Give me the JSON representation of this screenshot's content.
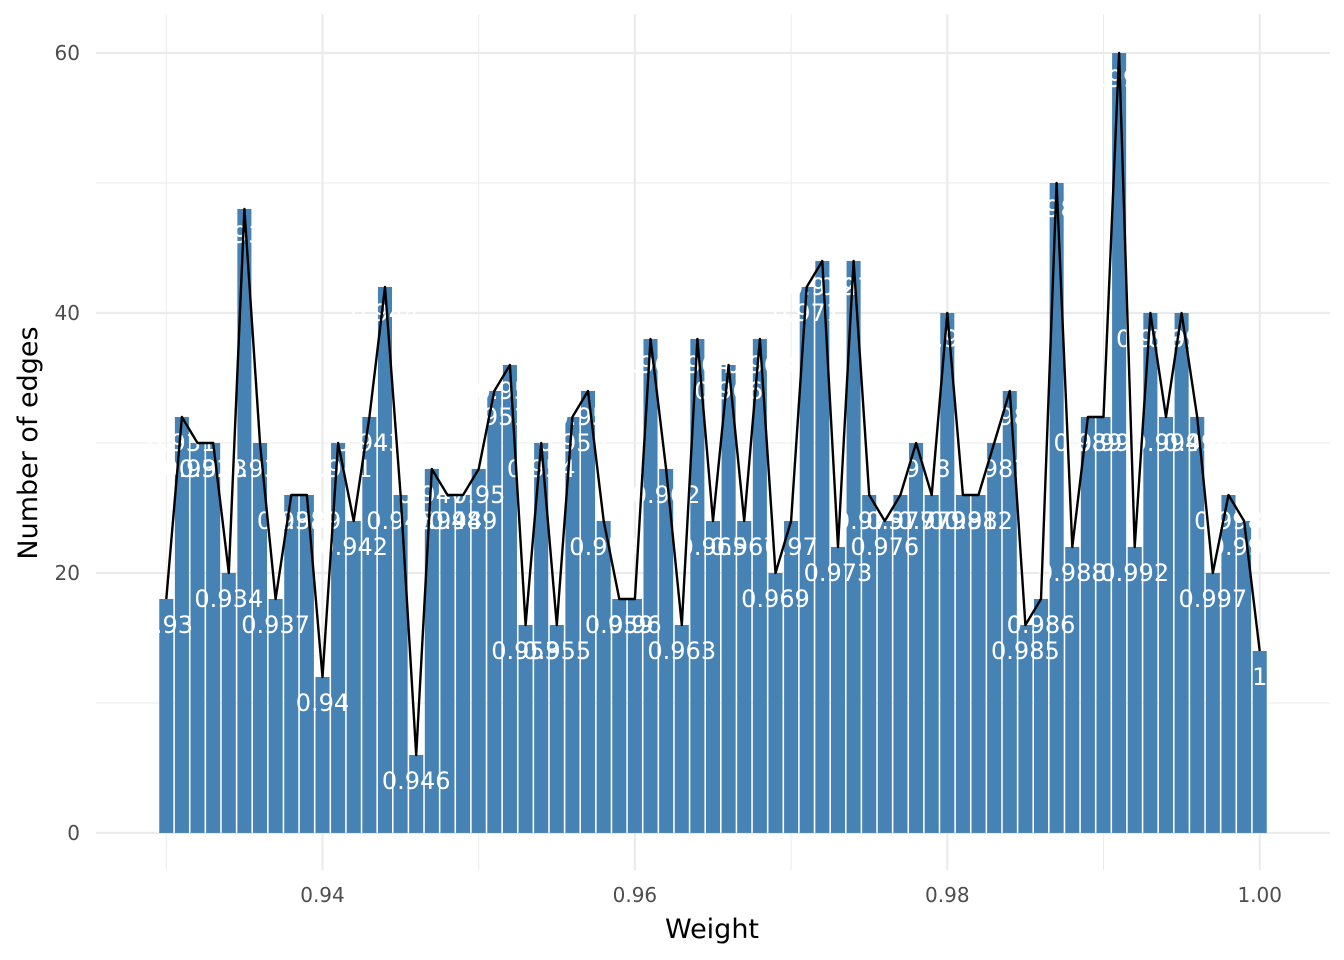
{
  "chart_data": {
    "type": "bar",
    "xlabel": "Weight",
    "ylabel": "Number of edges",
    "title": "",
    "xlim": [
      0.9255,
      1.0045
    ],
    "ylim": [
      -2.85,
      63
    ],
    "grid": true,
    "x_ticks": [
      0.94,
      0.96,
      0.98,
      1.0
    ],
    "x_tick_labels": [
      "0.94",
      "0.96",
      "0.98",
      "1.00"
    ],
    "y_ticks": [
      0,
      20,
      40,
      60
    ],
    "y_tick_labels": [
      "0",
      "20",
      "40",
      "60"
    ],
    "colors": {
      "bar": "#4682b4",
      "line": "#000000",
      "label": "#ffffff",
      "grid": "#ebebeb"
    },
    "x": [
      0.93,
      0.931,
      0.932,
      0.933,
      0.934,
      0.935,
      0.936,
      0.937,
      0.938,
      0.939,
      0.94,
      0.941,
      0.942,
      0.943,
      0.944,
      0.945,
      0.946,
      0.947,
      0.948,
      0.949,
      0.95,
      0.951,
      0.952,
      0.953,
      0.954,
      0.955,
      0.956,
      0.957,
      0.958,
      0.959,
      0.96,
      0.961,
      0.962,
      0.963,
      0.964,
      0.965,
      0.966,
      0.967,
      0.968,
      0.969,
      0.97,
      0.971,
      0.972,
      0.973,
      0.974,
      0.975,
      0.976,
      0.977,
      0.978,
      0.979,
      0.98,
      0.981,
      0.982,
      0.983,
      0.984,
      0.985,
      0.986,
      0.987,
      0.988,
      0.989,
      0.99,
      0.991,
      0.992,
      0.993,
      0.994,
      0.995,
      0.996,
      0.997,
      0.998,
      0.999,
      1.0
    ],
    "labels": [
      "0.93",
      "0.931",
      "0.932",
      "0.933",
      "0.934",
      "0.935",
      "0.936",
      "0.937",
      "0.938",
      "0.939",
      "0.94",
      "0.941",
      "0.942",
      "0.943",
      "0.944",
      "0.945",
      "0.946",
      "0.947",
      "0.948",
      "0.949",
      "0.95",
      "0.951",
      "0.952",
      "0.953",
      "0.954",
      "0.955",
      "0.956",
      "0.957",
      "0.958",
      "0.959",
      "0.96",
      "0.961",
      "0.962",
      "0.963",
      "0.964",
      "0.965",
      "0.966",
      "0.967",
      "0.968",
      "0.969",
      "0.97",
      "0.971",
      "0.972",
      "0.973",
      "0.974",
      "0.975",
      "0.976",
      "0.977",
      "0.978",
      "0.979",
      "0.98",
      "0.981",
      "0.982",
      "0.983",
      "0.984",
      "0.985",
      "0.986",
      "0.987",
      "0.988",
      "0.989",
      "0.99",
      "0.991",
      "0.992",
      "0.993",
      "0.994",
      "0.995",
      "0.996",
      "0.997",
      "0.998",
      "0.999",
      "1"
    ],
    "values": [
      18,
      32,
      30,
      30,
      20,
      48,
      30,
      18,
      26,
      26,
      12,
      30,
      24,
      32,
      42,
      26,
      6,
      28,
      26,
      26,
      28,
      34,
      36,
      16,
      30,
      16,
      32,
      34,
      24,
      18,
      18,
      38,
      28,
      16,
      38,
      24,
      36,
      24,
      38,
      20,
      24,
      42,
      44,
      22,
      44,
      26,
      24,
      26,
      30,
      26,
      40,
      26,
      26,
      30,
      34,
      16,
      18,
      50,
      22,
      32,
      32,
      60,
      22,
      40,
      32,
      40,
      32,
      20,
      26,
      24,
      14
    ]
  }
}
